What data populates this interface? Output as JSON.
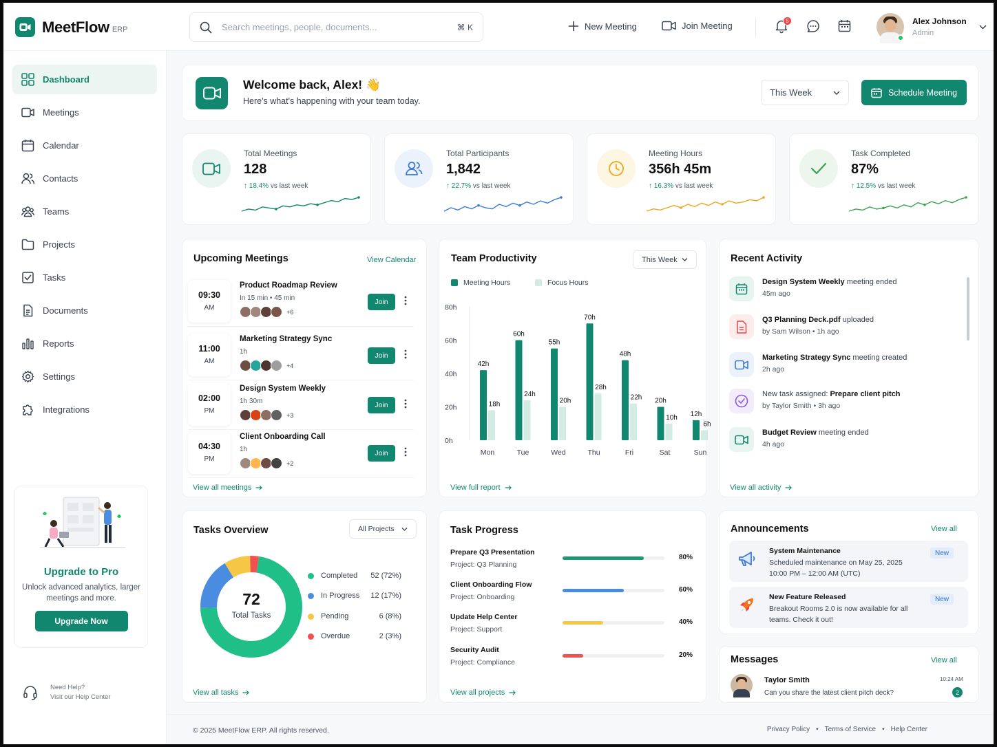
{
  "brand": {
    "name": "MeetFlow",
    "suffix": "ERP"
  },
  "search": {
    "placeholder": "Search meetings, people, documents...",
    "shortcut": "⌘ K"
  },
  "top_actions": {
    "new_meeting": "New Meeting",
    "join_meeting": "Join Meeting",
    "notification_count": "5"
  },
  "user": {
    "name": "Alex Johnson",
    "role": "Admin"
  },
  "sidebar": {
    "items": [
      {
        "label": "Dashboard",
        "icon": "grid-icon",
        "active": true
      },
      {
        "label": "Meetings",
        "icon": "video-icon"
      },
      {
        "label": "Calendar",
        "icon": "calendar-icon"
      },
      {
        "label": "Contacts",
        "icon": "contacts-icon"
      },
      {
        "label": "Teams",
        "icon": "teams-icon"
      },
      {
        "label": "Projects",
        "icon": "folder-icon"
      },
      {
        "label": "Tasks",
        "icon": "checkbox-icon"
      },
      {
        "label": "Documents",
        "icon": "document-icon"
      },
      {
        "label": "Reports",
        "icon": "bar-chart-icon"
      },
      {
        "label": "Settings",
        "icon": "gear-icon"
      },
      {
        "label": "Integrations",
        "icon": "puzzle-icon"
      }
    ]
  },
  "upgrade": {
    "title": "Upgrade to Pro",
    "text": "Unlock advanced analytics, larger meetings and more.",
    "button": "Upgrade Now"
  },
  "help": {
    "title": "Need Help?",
    "subtitle": "Visit our Help Center"
  },
  "welcome": {
    "title": "Welcome back, Alex! 👋",
    "subtitle": "Here's what's happening with your team today.",
    "period": "This Week",
    "schedule_button": "Schedule Meeting"
  },
  "stats": [
    {
      "label": "Total Meetings",
      "value": "128",
      "change": "18.4%",
      "suffix": "vs last week",
      "color": "#12876f",
      "bg": "#eaf5f1",
      "spark": [
        3,
        5,
        4,
        7,
        6,
        5,
        8,
        7,
        9,
        8,
        10,
        9,
        11,
        13,
        12,
        15,
        14,
        16
      ]
    },
    {
      "label": "Total Participants",
      "value": "1,842",
      "change": "22.7%",
      "suffix": "vs last week",
      "color": "#3b7bd8",
      "bg": "#ecf2fb",
      "spark": [
        3,
        6,
        4,
        7,
        5,
        8,
        6,
        5,
        9,
        7,
        10,
        8,
        11,
        9,
        12,
        10,
        13,
        15
      ]
    },
    {
      "label": "Meeting Hours",
      "value": "356h 45m",
      "change": "16.3%",
      "suffix": "vs last week",
      "color": "#e9a820",
      "bg": "#fdf6e3",
      "spark": [
        3,
        5,
        4,
        6,
        8,
        6,
        9,
        7,
        10,
        8,
        11,
        9,
        12,
        10,
        11,
        13,
        12,
        15
      ]
    },
    {
      "label": "Task Completed",
      "value": "87%",
      "change": "12.5%",
      "suffix": "vs last week",
      "color": "#3aa34a",
      "bg": "#ecf6ec",
      "spark": [
        3,
        5,
        4,
        7,
        5,
        6,
        8,
        6,
        9,
        7,
        11,
        9,
        12,
        10,
        13,
        11,
        14,
        16
      ]
    }
  ],
  "upcoming": {
    "title": "Upcoming Meetings",
    "view_link": "View Calendar",
    "view_all": "View all meetings",
    "join_label": "Join",
    "meetings": [
      {
        "time": "09:30",
        "period": "AM",
        "title": "Product Roadmap Review",
        "meta": "In 15 min • 45 min",
        "more": "+6"
      },
      {
        "time": "11:00",
        "period": "AM",
        "title": "Marketing Strategy Sync",
        "meta": "1h",
        "more": "+4"
      },
      {
        "time": "02:00",
        "period": "PM",
        "title": "Design System Weekly",
        "meta": "1h 30m",
        "more": "+3"
      },
      {
        "time": "04:30",
        "period": "PM",
        "title": "Client Onboarding Call",
        "meta": "1h",
        "more": "+2"
      }
    ]
  },
  "productivity": {
    "title": "Team Productivity",
    "period": "This Week",
    "view_link": "View full report"
  },
  "chart_data": {
    "type": "bar",
    "title": "Team Productivity",
    "categories": [
      "Mon",
      "Tue",
      "Wed",
      "Thu",
      "Fri",
      "Sat",
      "Sun"
    ],
    "series": [
      {
        "name": "Meeting Hours",
        "color": "#12876f",
        "values": [
          42,
          60,
          55,
          70,
          48,
          20,
          12
        ],
        "labels": [
          "42h",
          "60h",
          "55h",
          "70h",
          "48h",
          "20h",
          "12h"
        ]
      },
      {
        "name": "Focus Hours",
        "color": "#d2ece3",
        "values": [
          18,
          24,
          20,
          28,
          22,
          10,
          6
        ],
        "labels": [
          "18h",
          "24h",
          "20h",
          "28h",
          "22h",
          "10h",
          "6h"
        ]
      }
    ],
    "yticks": [
      "0h",
      "20h",
      "40h",
      "60h",
      "80h"
    ],
    "ylim": [
      0,
      80
    ],
    "legend": "top-left",
    "grid": false
  },
  "activity": {
    "title": "Recent Activity",
    "view_all": "View all activity",
    "items": [
      {
        "bold": "Design System Weekly",
        "rest": " meeting ended",
        "sub": "45m ago",
        "icon": "calendar-icon",
        "color": "#12876f",
        "bg": "#e8f4f0"
      },
      {
        "bold": "Q3 Planning Deck.pdf",
        "rest": " uploaded",
        "sub": "by Sam Wilson • 1h ago",
        "icon": "file-icon",
        "color": "#e04848",
        "bg": "#fdecec"
      },
      {
        "bold": "Marketing Strategy Sync",
        "rest": " meeting created",
        "sub": "2h ago",
        "icon": "video-icon",
        "color": "#3b7bd8",
        "bg": "#ecf2fb"
      },
      {
        "pre": "New task assigned: ",
        "bold": "Prepare client pitch",
        "rest": "",
        "sub": "by Taylor Smith • 3h ago",
        "icon": "check-circle-icon",
        "color": "#8b5cd6",
        "bg": "#f2ecfb"
      },
      {
        "bold": "Budget Review",
        "rest": " meeting ended",
        "sub": "4h ago",
        "icon": "video-icon",
        "color": "#12876f",
        "bg": "#e8f4f0"
      }
    ]
  },
  "tasks_overview": {
    "title": "Tasks Overview",
    "filter": "All Projects",
    "total": "72",
    "total_label": "Total Tasks",
    "view_all": "View all tasks",
    "items": [
      {
        "label": "Completed",
        "count": 52,
        "value": "52 (72%)",
        "color": "#1fbf87"
      },
      {
        "label": "In Progress",
        "count": 12,
        "value": "12 (17%)",
        "color": "#4a8ce0"
      },
      {
        "label": "Pending",
        "count": 6,
        "value": "6 (8%)",
        "color": "#f6c744"
      },
      {
        "label": "Overdue",
        "count": 2,
        "value": "2 (3%)",
        "color": "#ef5350"
      }
    ]
  },
  "task_progress": {
    "title": "Task Progress",
    "view_all": "View all projects",
    "items": [
      {
        "title": "Prepare Q3 Presentation",
        "project": "Project: Q3 Planning",
        "pct": 80,
        "label": "80%",
        "color": "#1a9a72"
      },
      {
        "title": "Client Onboarding Flow",
        "project": "Project: Onboarding",
        "pct": 60,
        "label": "60%",
        "color": "#4a8ce0"
      },
      {
        "title": "Update Help Center",
        "project": "Project: Support",
        "pct": 40,
        "label": "40%",
        "color": "#f6c744"
      },
      {
        "title": "Security Audit",
        "project": "Project: Compliance",
        "pct": 20,
        "label": "20%",
        "color": "#ef5350"
      }
    ]
  },
  "announcements": {
    "title": "Announcements",
    "view_all": "View all",
    "items": [
      {
        "title": "System Maintenance",
        "desc": "Scheduled maintenance on May 25, 2025 10:00 PM – 12:00 AM (UTC)",
        "badge": "New",
        "icon": "megaphone-icon"
      },
      {
        "title": "New Feature Released",
        "desc": "Breakout Rooms 2.0 is now available for all teams. Check it out!",
        "badge": "New",
        "icon": "rocket-icon"
      }
    ]
  },
  "messages": {
    "title": "Messages",
    "view_all": "View all",
    "item": {
      "name": "Taylor Smith",
      "text": "Can you share the latest client pitch deck?",
      "time": "10:24 AM",
      "count": "2"
    }
  },
  "footer": {
    "copyright": "© 2025 MeetFlow ERP. All rights reserved.",
    "links": [
      "Privacy Policy",
      "Terms of Service",
      "Help Center"
    ]
  }
}
